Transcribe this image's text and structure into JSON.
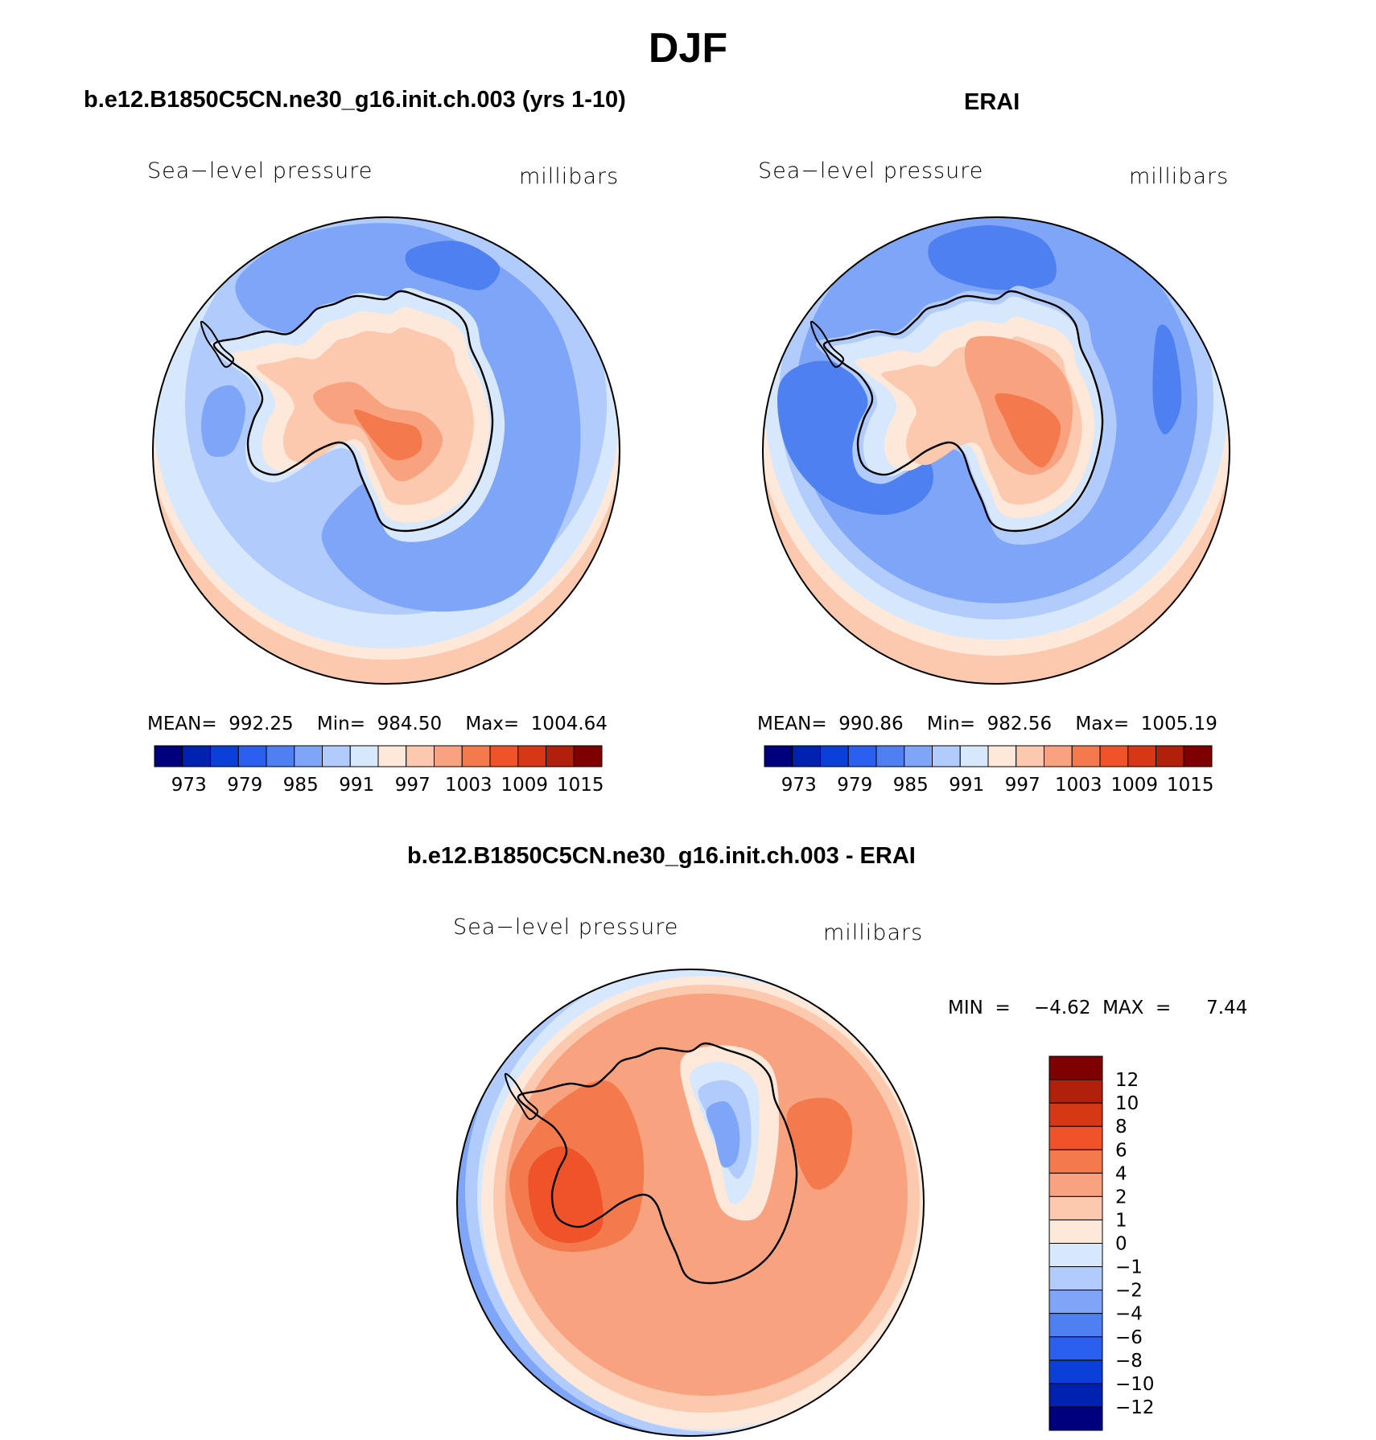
{
  "title": "DJF",
  "palette_abs": [
    "#00007f",
    "#0022b0",
    "#0a3fd8",
    "#2a5ff0",
    "#4f80f2",
    "#7ea5f8",
    "#b1cbfc",
    "#d7e8fd",
    "#fde8da",
    "#fcc8ae",
    "#f8a27f",
    "#f47a4e",
    "#f0532a",
    "#d63815",
    "#b0200a",
    "#7f0000"
  ],
  "palette_diff": [
    "#00007f",
    "#0022b0",
    "#0a3fd8",
    "#2a5ff0",
    "#4f80f2",
    "#7ea5f8",
    "#b1cbfc",
    "#d7e8fd",
    "#fde8da",
    "#fcc8ae",
    "#f8a27f",
    "#f47a4e",
    "#f0532a",
    "#d63815",
    "#b0200a",
    "#7f0000"
  ],
  "panels": [
    {
      "title": "b.e12.B1850C5CN.ne30_g16.init.ch.003 (yrs 1-10)",
      "variable": "Sea−level pressure",
      "units": "millibars",
      "stats": "MEAN=  992.25    Min=  984.50    Max=  1004.64",
      "colorbar_labels": [
        "973",
        "979",
        "985",
        "991",
        "997",
        "1003",
        "1009",
        "1015"
      ]
    },
    {
      "title": "ERAI",
      "variable": "Sea−level pressure",
      "units": "millibars",
      "stats": "MEAN=  990.86    Min=  982.56    Max=  1005.19",
      "colorbar_labels": [
        "973",
        "979",
        "985",
        "991",
        "997",
        "1003",
        "1009",
        "1015"
      ]
    },
    {
      "title": "b.e12.B1850C5CN.ne30_g16.init.ch.003 - ERAI",
      "variable": "Sea−level pressure",
      "units": "millibars",
      "stats": "MIN  =    −4.62  MAX  =      7.44",
      "colorbar_labels": [
        "12",
        "10",
        "8",
        "6",
        "4",
        "2",
        "1",
        "0",
        "−1",
        "−2",
        "−4",
        "−6",
        "−8",
        "−10",
        "−12"
      ]
    }
  ],
  "chart_data": [
    {
      "type": "heatmap",
      "title": "b.e12.B1850C5CN.ne30_g16.init.ch.003 (yrs 1-10)",
      "field": "Sea−level pressure",
      "units": "millibars",
      "mean": 992.25,
      "min": 984.5,
      "max": 1004.64,
      "contour_levels": [
        973,
        976,
        979,
        982,
        985,
        988,
        991,
        994,
        997,
        1000,
        1003,
        1006,
        1009,
        1012,
        1015
      ]
    },
    {
      "type": "heatmap",
      "title": "ERAI",
      "field": "Sea−level pressure",
      "units": "millibars",
      "mean": 990.86,
      "min": 982.56,
      "max": 1005.19,
      "contour_levels": [
        973,
        976,
        979,
        982,
        985,
        988,
        991,
        994,
        997,
        1000,
        1003,
        1006,
        1009,
        1012,
        1015
      ]
    },
    {
      "type": "heatmap",
      "title": "b.e12.B1850C5CN.ne30_g16.init.ch.003 - ERAI",
      "field": "Sea−level pressure",
      "units": "millibars",
      "min": -4.62,
      "max": 7.44,
      "contour_levels": [
        -12,
        -10,
        -8,
        -6,
        -4,
        -2,
        -1,
        0,
        1,
        2,
        4,
        6,
        8,
        10,
        12
      ]
    }
  ]
}
